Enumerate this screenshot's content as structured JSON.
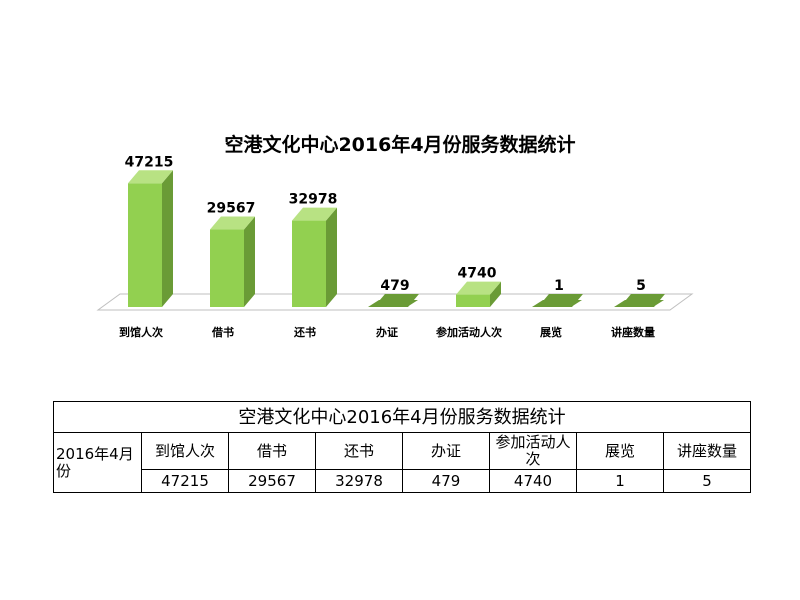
{
  "chart_data": {
    "type": "bar",
    "title": "空港文化中心2016年4月份服务数据统计",
    "categories": [
      "到馆人次",
      "借书",
      "还书",
      "办证",
      "参加活动人次",
      "展览",
      "讲座数量"
    ],
    "series": [
      {
        "values": [
          47215,
          29567,
          32978,
          479,
          4740,
          1,
          5
        ]
      }
    ],
    "value_labels": [
      "47215",
      "29567",
      "32978",
      "479",
      "4740",
      "1",
      "5"
    ],
    "ylim": [
      0,
      50000
    ],
    "three_d": true,
    "grid": false,
    "colors": {
      "bar_front": "#92d050",
      "bar_side": "#6a9b36",
      "bar_top": "#b8e283",
      "floor_stroke": "#bfbfbf"
    }
  },
  "table": {
    "title": "空港文化中心2016年4月份服务数据统计",
    "row_label": "2016年4月份",
    "headers": [
      "到馆人次",
      "借书",
      "还书",
      "办证",
      "参加活动人次",
      "展览",
      "讲座数量"
    ],
    "values": [
      "47215",
      "29567",
      "32978",
      "479",
      "4740",
      "1",
      "5"
    ]
  }
}
